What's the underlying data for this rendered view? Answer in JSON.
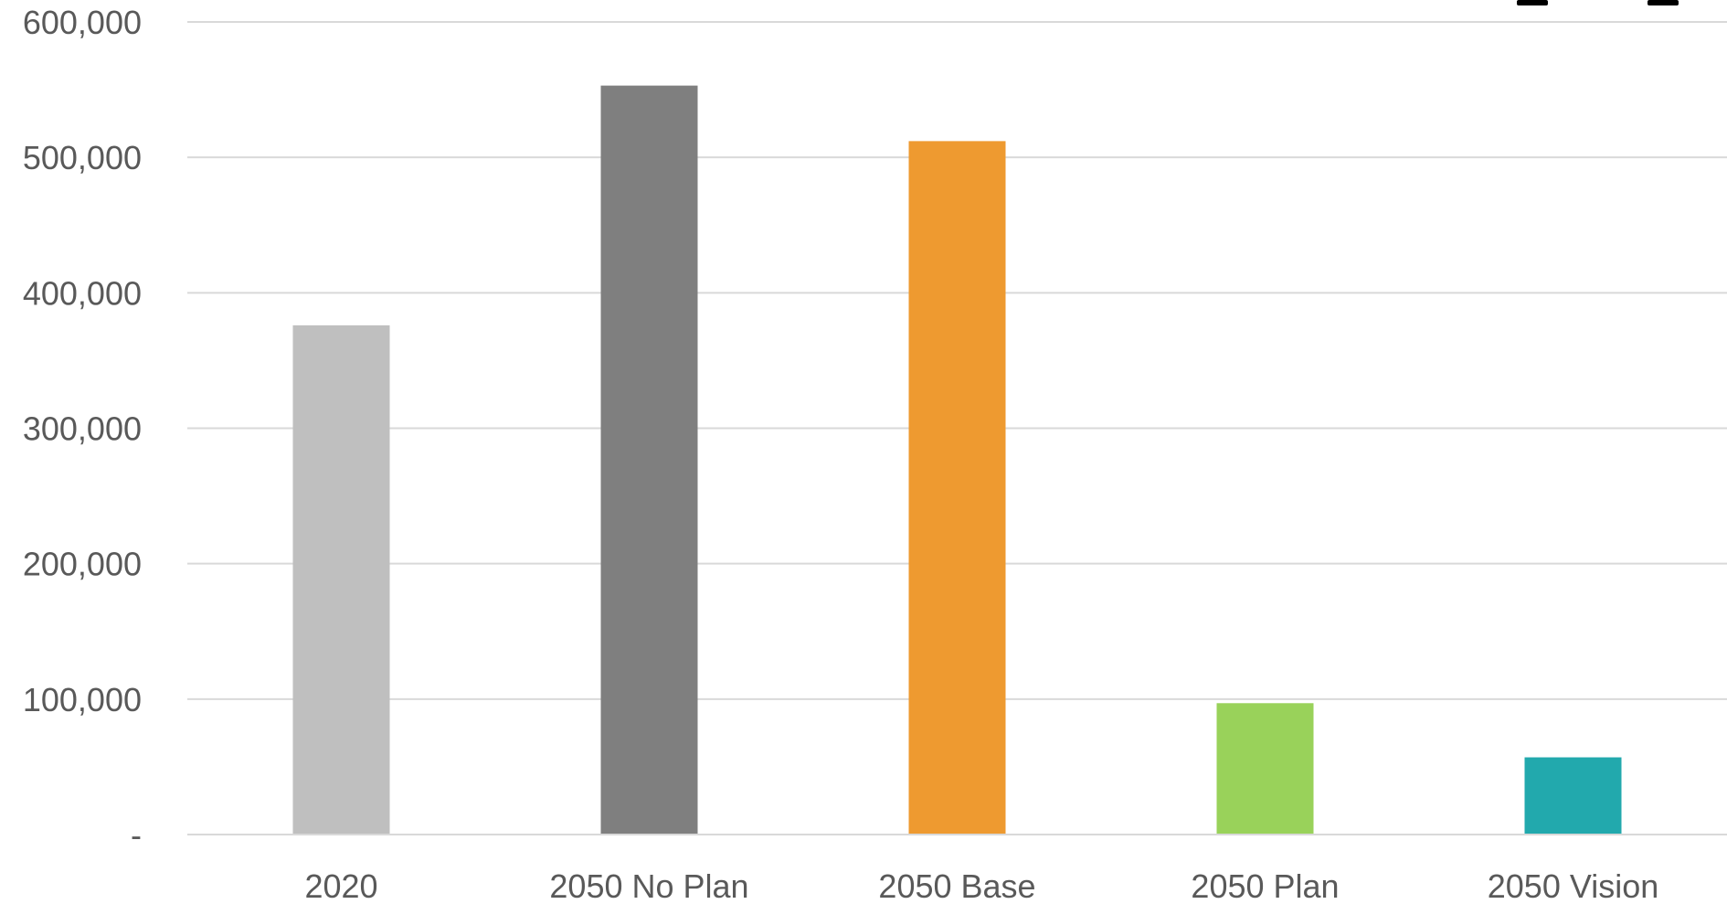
{
  "chart_data": {
    "type": "bar",
    "categories": [
      "2020",
      "2050 No Plan",
      "2050 Base",
      "2050 Plan",
      "2050 Vision"
    ],
    "values": [
      376000,
      553000,
      512000,
      97000,
      57000
    ],
    "colors": [
      "#bfbfbf",
      "#7f7f7f",
      "#ee9a30",
      "#99d25a",
      "#22a9ad"
    ],
    "title": "",
    "xlabel": "",
    "ylabel": "",
    "ylim": [
      0,
      600000
    ],
    "yticks": [
      0,
      100000,
      200000,
      300000,
      400000,
      500000,
      600000
    ],
    "ytick_labels": [
      "-",
      "100,000",
      "200,000",
      "300,000",
      "400,000",
      "500,000",
      "600,000"
    ],
    "grid": true,
    "legend": "none"
  }
}
